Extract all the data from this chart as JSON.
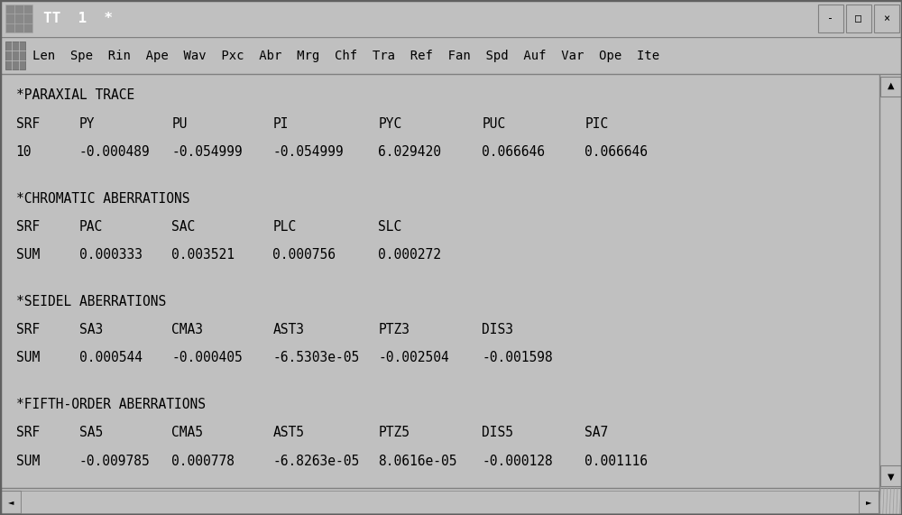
{
  "title_bar": "TT  1  *",
  "menu_bar": "Len  Spe  Rin  Ape  Wav  Pxc  Abr  Mrg  Chf  Tra  Ref  Fan  Spd  Auf  Var  Ope  Ite",
  "bg_color": "#c0c0c0",
  "content_bg": "#ffffff",
  "title_bar_bg": "#3a3a3a",
  "title_bar_fg": "#ffffff",
  "menu_bar_bg": "#c0c0c0",
  "border_color": "#808080",
  "text_color": "#000000",
  "font_size": 10.5,
  "title_font_size": 11.5,
  "figsize": [
    10.0,
    5.71
  ],
  "dpi": 100,
  "sections": [
    {
      "header": "*PARAXIAL TRACE",
      "col_headers": [
        "SRF",
        "PY",
        "PU",
        "PI",
        "PYC",
        "PUC",
        "PIC"
      ],
      "rows": [
        [
          "10",
          "-0.000489",
          "-0.054999",
          "-0.054999",
          "6.029420",
          "0.066646",
          "0.066646"
        ]
      ]
    },
    {
      "header": "*CHROMATIC ABERRATIONS",
      "col_headers": [
        "SRF",
        "PAC",
        "SAC",
        "PLC",
        "SLC"
      ],
      "rows": [
        [
          "SUM",
          "0.000333",
          "0.003521",
          "0.000756",
          "0.000272"
        ]
      ]
    },
    {
      "header": "*SEIDEL ABERRATIONS",
      "col_headers": [
        "SRF",
        "SA3",
        "CMA3",
        "AST3",
        "PTZ3",
        "DIS3"
      ],
      "rows": [
        [
          "SUM",
          "0.000544",
          "-0.000405",
          "-6.5303e-05",
          "-0.002504",
          "-0.001598"
        ]
      ]
    },
    {
      "header": "*FIFTH-ORDER ABERRATIONS",
      "col_headers": [
        "SRF",
        "SA5",
        "CMA5",
        "AST5",
        "PTZ5",
        "DIS5",
        "SA7"
      ],
      "rows": [
        [
          "SUM",
          "-0.009785",
          "0.000778",
          "-6.8263e-05",
          "8.0616e-05",
          "-0.000128",
          "0.001116"
        ]
      ]
    }
  ]
}
